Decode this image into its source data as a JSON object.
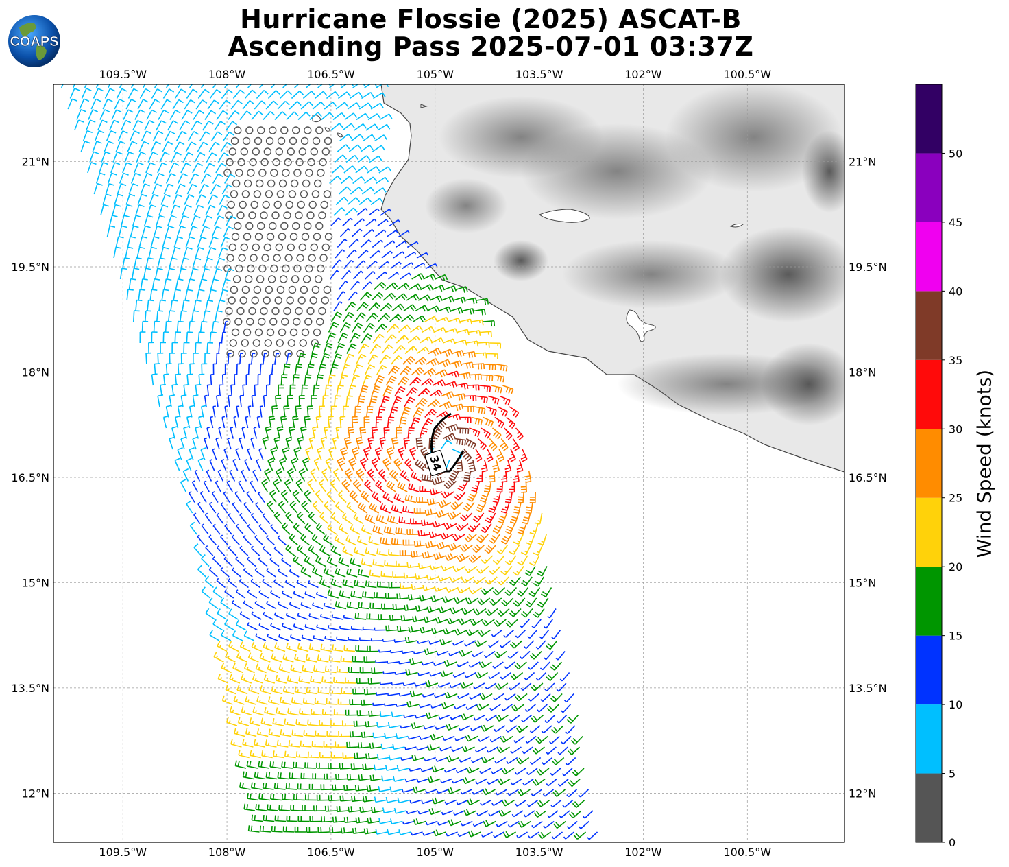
{
  "title": {
    "line1": "Hurricane Flossie (2025) ASCAT-B",
    "line2": "Ascending Pass 2025-07-01 03:37Z"
  },
  "logo": {
    "text": "COAPS",
    "icon": "globe-icon"
  },
  "map": {
    "lon_range": [
      -110.5,
      -99.1
    ],
    "lat_range": [
      11.3,
      22.1
    ],
    "lon_ticks": [
      "109.5°W",
      "108°W",
      "106.5°W",
      "105°W",
      "103.5°W",
      "102°W",
      "100.5°W"
    ],
    "lat_ticks": [
      "21°N",
      "19.5°N",
      "18°N",
      "16.5°N",
      "15°N",
      "13.5°N",
      "12°N"
    ],
    "gridlines": true,
    "terrain": "grayscale land elevation",
    "contour_label": "34"
  },
  "colorbar": {
    "label": "Wind Speed (knots)",
    "tick_labels": [
      "0",
      "5",
      "10",
      "15",
      "20",
      "25",
      "30",
      "35",
      "40",
      "45",
      "50"
    ],
    "bins": [
      {
        "from": 0,
        "to": 5,
        "color": "#555555"
      },
      {
        "from": 5,
        "to": 10,
        "color": "#00bfff"
      },
      {
        "from": 10,
        "to": 15,
        "color": "#0033ff"
      },
      {
        "from": 15,
        "to": 20,
        "color": "#009600"
      },
      {
        "from": 20,
        "to": 25,
        "color": "#ffd20a"
      },
      {
        "from": 25,
        "to": 30,
        "color": "#ff8c00"
      },
      {
        "from": 30,
        "to": 35,
        "color": "#ff0a0a"
      },
      {
        "from": 35,
        "to": 40,
        "color": "#7f3a28"
      },
      {
        "from": 40,
        "to": 45,
        "color": "#f000f0"
      },
      {
        "from": 45,
        "to": 50,
        "color": "#8a00be"
      },
      {
        "from": 50,
        "to": 55,
        "color": "#320064"
      }
    ]
  },
  "chart_data": {
    "type": "scatter",
    "description_kind": "wind barbs",
    "storm_center": {
      "lon": -104.85,
      "lat": 16.8
    },
    "max_wind_kt": 40,
    "swath_west_edge": [
      [
        -110.4,
        22.1
      ],
      [
        -108.5,
        16.0
      ],
      [
        -107.5,
        11.3
      ]
    ],
    "swath_east_edge": [
      [
        -105.3,
        22.1
      ],
      [
        -103.5,
        16.3
      ],
      [
        -102.6,
        11.3
      ]
    ]
  }
}
